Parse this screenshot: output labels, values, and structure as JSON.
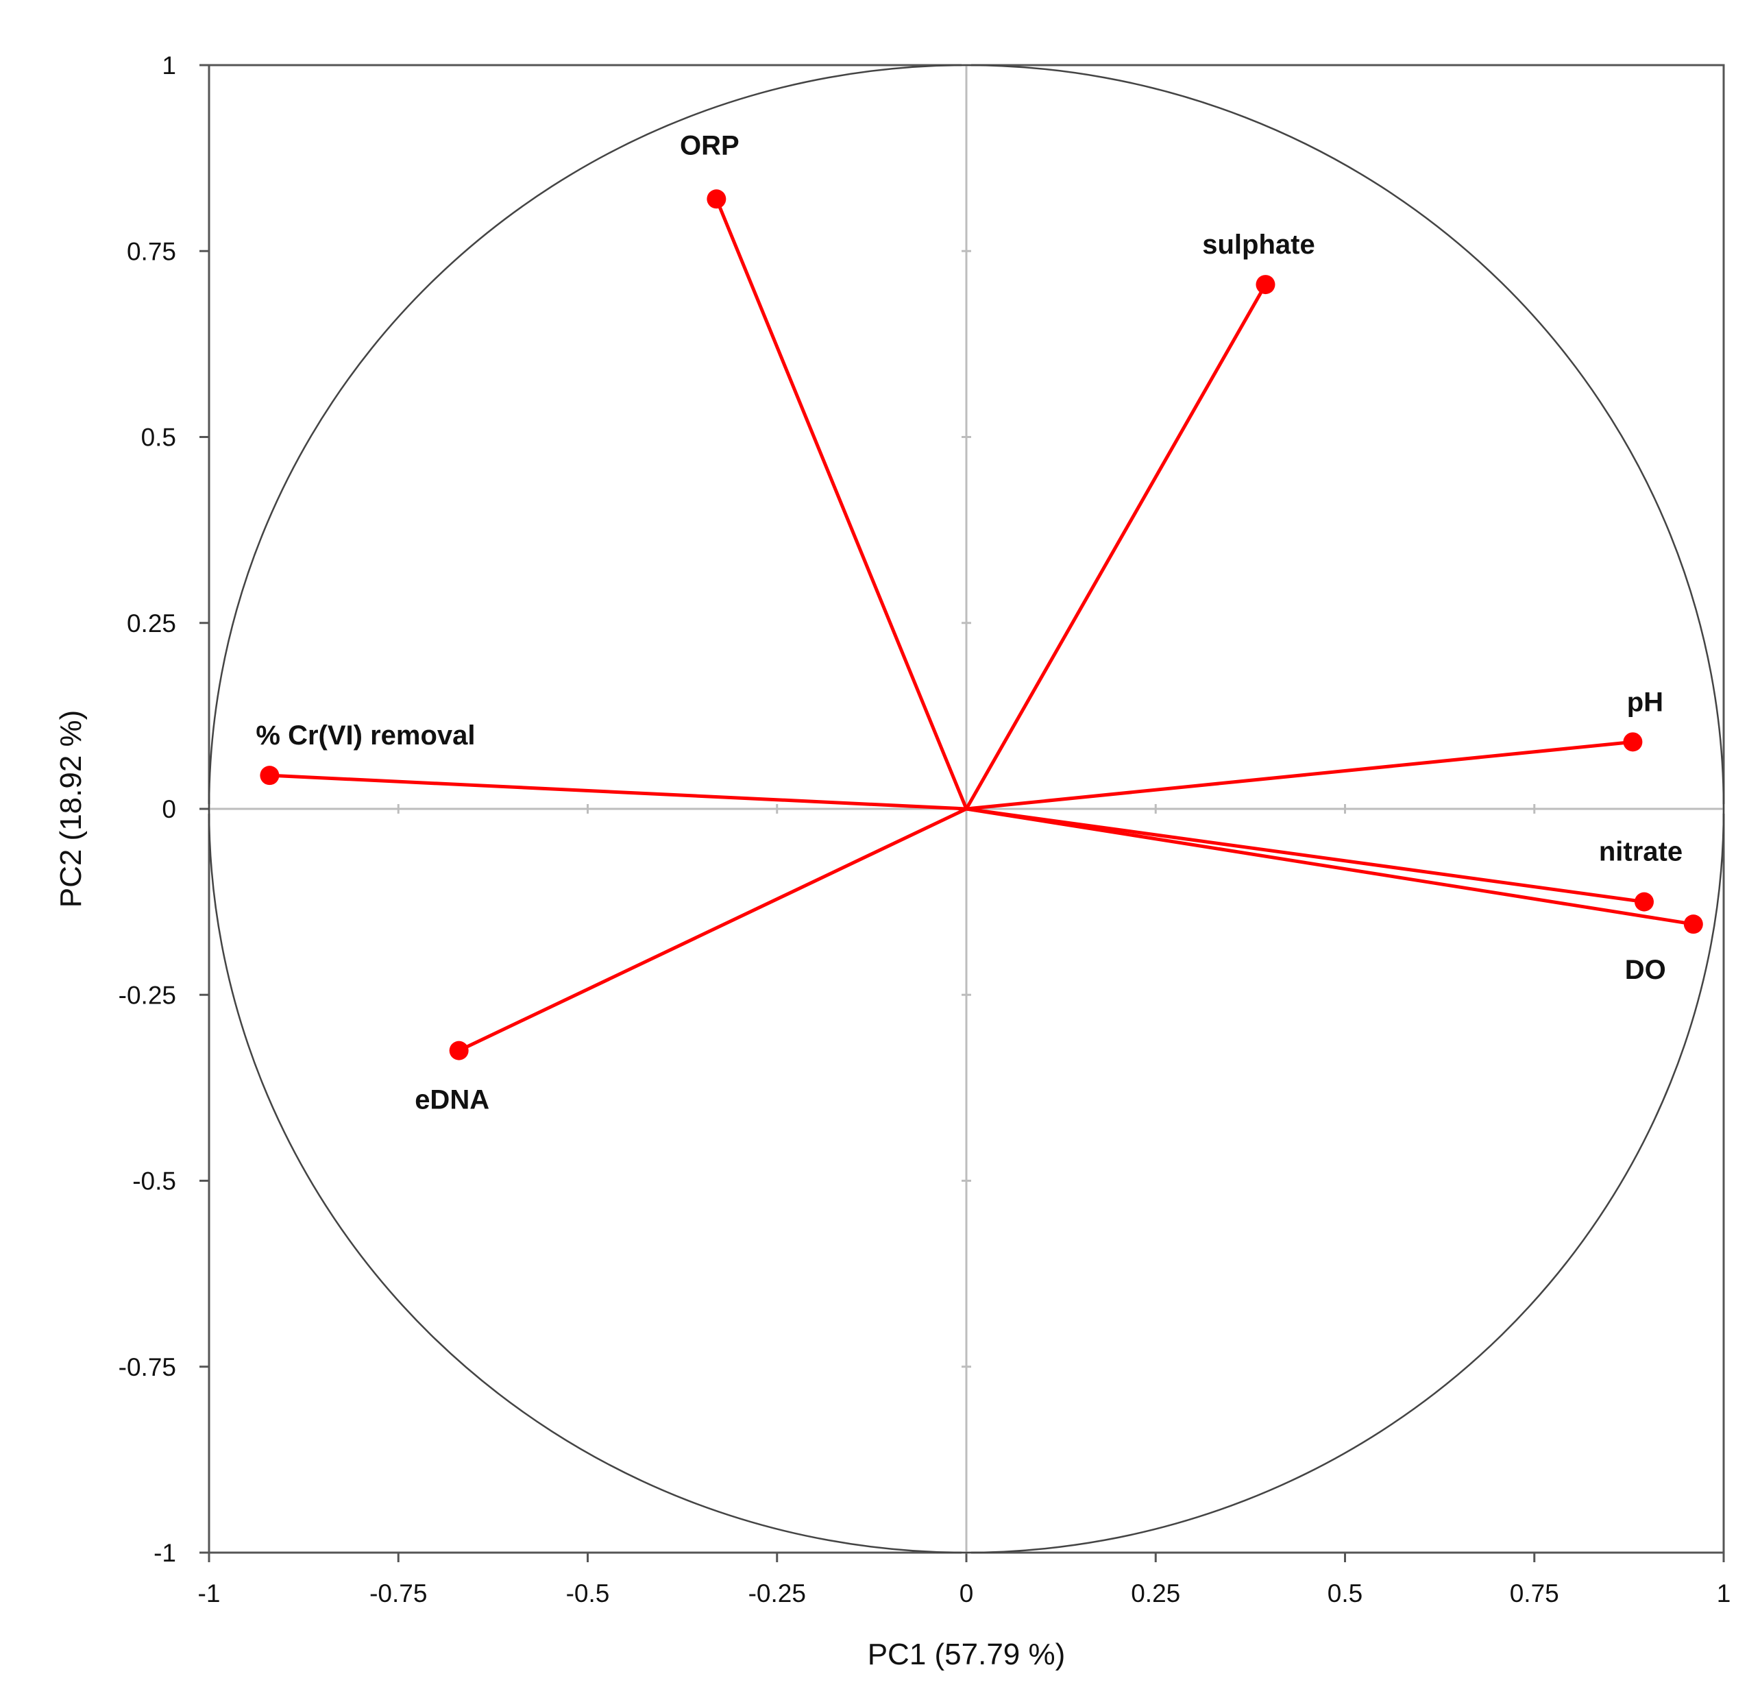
{
  "chart_data": {
    "type": "scatter",
    "title": "",
    "xlabel": "PC1 (57.79 %)",
    "ylabel": "PC2 (18.92 %)",
    "xlim": [
      -1,
      1
    ],
    "ylim": [
      -1,
      1
    ],
    "x_ticks": [
      "-1",
      "-0.75",
      "-0.5",
      "-0.25",
      "0",
      "0.25",
      "0.5",
      "0.75",
      "1"
    ],
    "y_ticks": [
      "1",
      "0.75",
      "0.5",
      "0.25",
      "0",
      "-0.25",
      "-0.5",
      "-0.75",
      "-1"
    ],
    "grid": false,
    "correlation_circle": true,
    "vector_color": "#ff0000",
    "variables": [
      {
        "name": "ORP",
        "x": -0.33,
        "y": 0.82
      },
      {
        "name": "sulphate",
        "x": 0.395,
        "y": 0.705
      },
      {
        "name": "pH",
        "x": 0.88,
        "y": 0.09
      },
      {
        "name": "% Cr(VI) removal",
        "x": -0.92,
        "y": 0.045
      },
      {
        "name": "nitrate",
        "x": 0.895,
        "y": -0.125
      },
      {
        "name": "DO",
        "x": 0.96,
        "y": -0.155
      },
      {
        "name": "eDNA",
        "x": -0.67,
        "y": -0.325
      }
    ]
  }
}
